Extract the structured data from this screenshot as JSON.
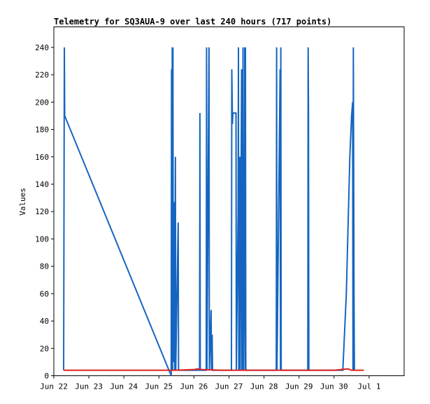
{
  "chart_data": {
    "type": "line",
    "title": "Telemetry for SQ3AUA-9 over last 240 hours (717 points)",
    "xlabel": "",
    "ylabel": "Values",
    "xlim": [
      22.0,
      32.0
    ],
    "ylim": [
      0,
      255
    ],
    "y_ticks": [
      0,
      20,
      40,
      60,
      80,
      100,
      120,
      140,
      160,
      180,
      200,
      220,
      240
    ],
    "x_ticks": [
      {
        "value": 22,
        "label": "Jun 22"
      },
      {
        "value": 23,
        "label": "Jun 23"
      },
      {
        "value": 24,
        "label": "Jun 24"
      },
      {
        "value": 25,
        "label": "Jun 25"
      },
      {
        "value": 26,
        "label": "Jun 26"
      },
      {
        "value": 27,
        "label": "Jun 27"
      },
      {
        "value": 28,
        "label": "Jun 28"
      },
      {
        "value": 29,
        "label": "Jun 29"
      },
      {
        "value": 30,
        "label": "Jun 30"
      },
      {
        "value": 31,
        "label": "Jul 1"
      }
    ],
    "grid": false,
    "legend": "none",
    "series": [
      {
        "color": "#1565c0",
        "points": [
          [
            22.28,
            4
          ],
          [
            22.3,
            240
          ],
          [
            22.31,
            190
          ],
          [
            25.35,
            0
          ],
          [
            25.36,
            224
          ],
          [
            25.37,
            4
          ],
          [
            25.38,
            240
          ],
          [
            25.39,
            4
          ],
          [
            25.4,
            240
          ],
          [
            25.41,
            10
          ],
          [
            25.44,
            127
          ],
          [
            25.45,
            4
          ],
          [
            25.47,
            160
          ],
          [
            25.48,
            4
          ],
          [
            25.55,
            112
          ],
          [
            25.56,
            4
          ],
          [
            26.16,
            4
          ],
          [
            26.17,
            192
          ],
          [
            26.18,
            4
          ],
          [
            26.35,
            4
          ],
          [
            26.36,
            240
          ],
          [
            26.37,
            4
          ],
          [
            26.43,
            240
          ],
          [
            26.44,
            4
          ],
          [
            26.49,
            48
          ],
          [
            26.5,
            4
          ],
          [
            26.52,
            30
          ],
          [
            26.53,
            4
          ],
          [
            27.07,
            4
          ],
          [
            27.08,
            224
          ],
          [
            27.1,
            184
          ],
          [
            27.11,
            192
          ],
          [
            27.2,
            192
          ],
          [
            27.21,
            4
          ],
          [
            27.26,
            120
          ],
          [
            27.27,
            240
          ],
          [
            27.28,
            4
          ],
          [
            27.31,
            160
          ],
          [
            27.32,
            4
          ],
          [
            27.36,
            224
          ],
          [
            27.37,
            4
          ],
          [
            27.38,
            200
          ],
          [
            27.39,
            40
          ],
          [
            27.4,
            240
          ],
          [
            27.41,
            4
          ],
          [
            27.44,
            112
          ],
          [
            27.45,
            240
          ],
          [
            27.46,
            4
          ],
          [
            27.47,
            240
          ],
          [
            27.48,
            4
          ],
          [
            28.35,
            4
          ],
          [
            28.36,
            240
          ],
          [
            28.37,
            4
          ],
          [
            28.46,
            224
          ],
          [
            28.47,
            4
          ],
          [
            28.48,
            240
          ],
          [
            28.49,
            4
          ],
          [
            29.25,
            4
          ],
          [
            29.26,
            240
          ],
          [
            29.27,
            192
          ],
          [
            29.28,
            4
          ],
          [
            30.25,
            4
          ],
          [
            30.35,
            60
          ],
          [
            30.45,
            160
          ],
          [
            30.5,
            190
          ],
          [
            30.53,
            200
          ],
          [
            30.54,
            4
          ],
          [
            30.55,
            240
          ],
          [
            30.57,
            56
          ],
          [
            30.58,
            4
          ]
        ]
      },
      {
        "color": "#e02020",
        "points": [
          [
            22.28,
            4
          ],
          [
            25.3,
            4
          ],
          [
            25.45,
            4
          ],
          [
            26.0,
            4.5
          ],
          [
            26.1,
            5
          ],
          [
            26.2,
            4.5
          ],
          [
            26.8,
            4
          ],
          [
            30.0,
            4
          ],
          [
            30.2,
            4.5
          ],
          [
            30.4,
            5
          ],
          [
            30.5,
            4
          ],
          [
            30.85,
            4
          ]
        ]
      }
    ]
  }
}
